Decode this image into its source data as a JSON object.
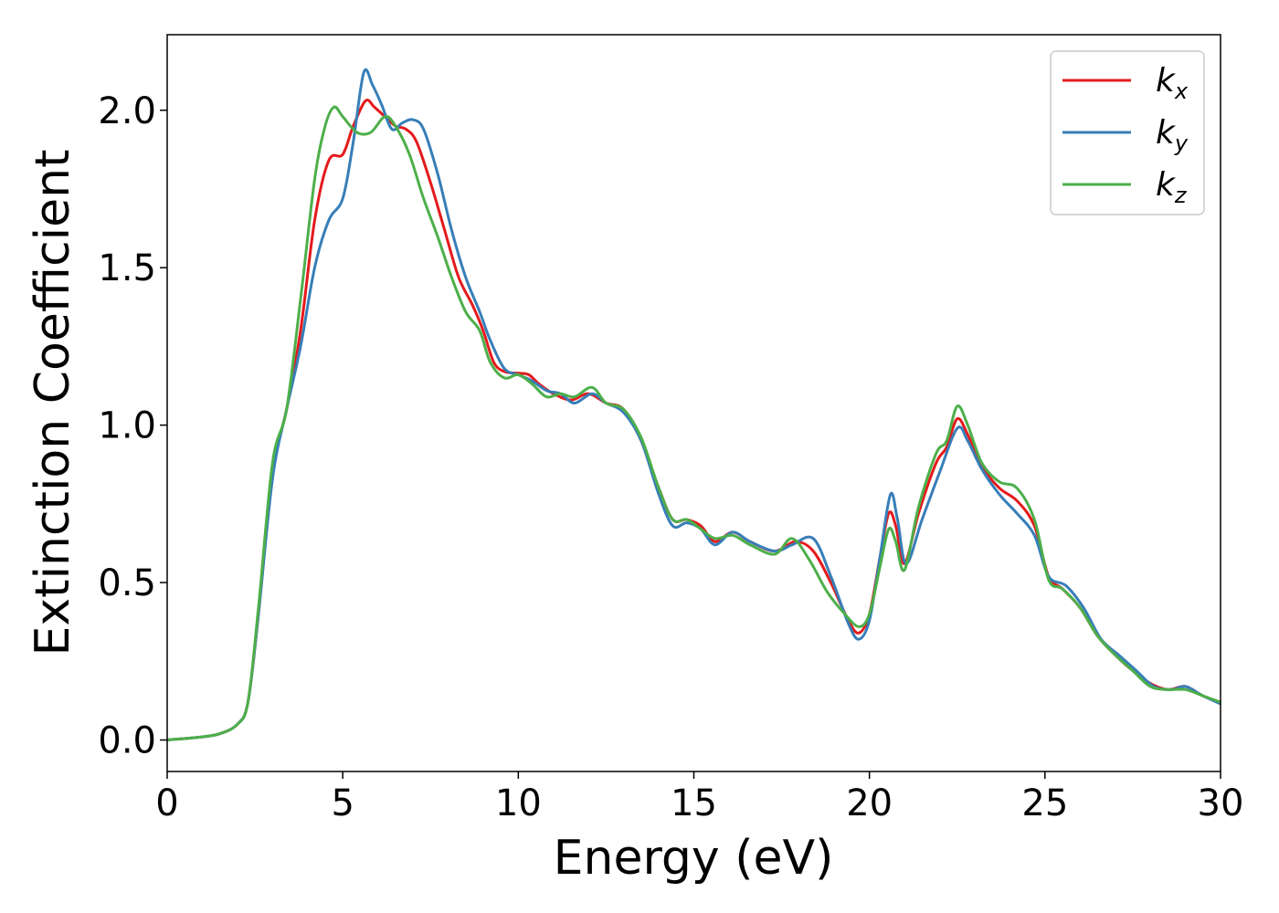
{
  "chart_data": {
    "type": "line",
    "title": "",
    "xlabel": "Energy (eV)",
    "ylabel": "Extinction Coefficient",
    "xlim": [
      0,
      30
    ],
    "ylim": [
      -0.1,
      2.24
    ],
    "xticks": [
      0,
      5,
      10,
      15,
      20,
      25,
      30
    ],
    "yticks": [
      0.0,
      0.5,
      1.0,
      1.5,
      2.0
    ],
    "grid": false,
    "legend_placement": "top-right",
    "series": [
      {
        "base": "k",
        "sub": "x",
        "color": "#e41a1c",
        "points": [
          [
            0,
            0.0
          ],
          [
            1,
            0.01
          ],
          [
            1.5,
            0.02
          ],
          [
            2,
            0.05
          ],
          [
            2.3,
            0.12
          ],
          [
            2.6,
            0.4
          ],
          [
            3.0,
            0.85
          ],
          [
            3.4,
            1.05
          ],
          [
            3.8,
            1.3
          ],
          [
            4.2,
            1.65
          ],
          [
            4.6,
            1.84
          ],
          [
            5.0,
            1.86
          ],
          [
            5.3,
            1.95
          ],
          [
            5.65,
            2.03
          ],
          [
            5.9,
            2.01
          ],
          [
            6.2,
            1.98
          ],
          [
            6.5,
            1.95
          ],
          [
            6.8,
            1.94
          ],
          [
            7.1,
            1.9
          ],
          [
            7.5,
            1.77
          ],
          [
            7.9,
            1.62
          ],
          [
            8.3,
            1.47
          ],
          [
            8.7,
            1.38
          ],
          [
            9.0,
            1.3
          ],
          [
            9.3,
            1.2
          ],
          [
            9.6,
            1.17
          ],
          [
            10.0,
            1.165
          ],
          [
            10.3,
            1.16
          ],
          [
            10.6,
            1.13
          ],
          [
            11.0,
            1.1
          ],
          [
            11.5,
            1.08
          ],
          [
            12.0,
            1.1
          ],
          [
            12.5,
            1.07
          ],
          [
            13.0,
            1.05
          ],
          [
            13.5,
            0.95
          ],
          [
            14.0,
            0.8
          ],
          [
            14.4,
            0.7
          ],
          [
            14.8,
            0.7
          ],
          [
            15.2,
            0.68
          ],
          [
            15.6,
            0.63
          ],
          [
            16.1,
            0.66
          ],
          [
            16.6,
            0.63
          ],
          [
            17.3,
            0.6
          ],
          [
            17.9,
            0.63
          ],
          [
            18.4,
            0.6
          ],
          [
            18.9,
            0.5
          ],
          [
            19.4,
            0.38
          ],
          [
            19.7,
            0.34
          ],
          [
            20.0,
            0.4
          ],
          [
            20.3,
            0.58
          ],
          [
            20.55,
            0.72
          ],
          [
            20.75,
            0.68
          ],
          [
            21.0,
            0.56
          ],
          [
            21.4,
            0.72
          ],
          [
            21.9,
            0.88
          ],
          [
            22.2,
            0.93
          ],
          [
            22.5,
            1.02
          ],
          [
            22.8,
            0.97
          ],
          [
            23.2,
            0.87
          ],
          [
            23.7,
            0.8
          ],
          [
            24.2,
            0.76
          ],
          [
            24.7,
            0.68
          ],
          [
            25.1,
            0.52
          ],
          [
            25.5,
            0.48
          ],
          [
            26.0,
            0.42
          ],
          [
            26.5,
            0.33
          ],
          [
            27.0,
            0.27
          ],
          [
            27.5,
            0.22
          ],
          [
            28.0,
            0.18
          ],
          [
            28.5,
            0.16
          ],
          [
            29.0,
            0.17
          ],
          [
            29.5,
            0.14
          ],
          [
            30.0,
            0.12
          ]
        ]
      },
      {
        "base": "k",
        "sub": "y",
        "color": "#377eb8",
        "points": [
          [
            0,
            0.0
          ],
          [
            1,
            0.01
          ],
          [
            1.5,
            0.02
          ],
          [
            2,
            0.05
          ],
          [
            2.3,
            0.12
          ],
          [
            2.6,
            0.4
          ],
          [
            3.0,
            0.83
          ],
          [
            3.4,
            1.05
          ],
          [
            3.8,
            1.25
          ],
          [
            4.2,
            1.5
          ],
          [
            4.6,
            1.65
          ],
          [
            5.0,
            1.72
          ],
          [
            5.3,
            1.9
          ],
          [
            5.6,
            2.12
          ],
          [
            5.85,
            2.08
          ],
          [
            6.1,
            2.02
          ],
          [
            6.4,
            1.94
          ],
          [
            6.7,
            1.96
          ],
          [
            7.0,
            1.97
          ],
          [
            7.3,
            1.94
          ],
          [
            7.7,
            1.8
          ],
          [
            8.1,
            1.62
          ],
          [
            8.5,
            1.47
          ],
          [
            8.9,
            1.36
          ],
          [
            9.2,
            1.27
          ],
          [
            9.6,
            1.18
          ],
          [
            10.0,
            1.16
          ],
          [
            10.4,
            1.14
          ],
          [
            10.8,
            1.11
          ],
          [
            11.2,
            1.1
          ],
          [
            11.6,
            1.07
          ],
          [
            12.1,
            1.1
          ],
          [
            12.5,
            1.07
          ],
          [
            13.0,
            1.04
          ],
          [
            13.5,
            0.95
          ],
          [
            14.0,
            0.78
          ],
          [
            14.4,
            0.68
          ],
          [
            14.8,
            0.69
          ],
          [
            15.2,
            0.67
          ],
          [
            15.6,
            0.62
          ],
          [
            16.1,
            0.66
          ],
          [
            16.6,
            0.63
          ],
          [
            17.3,
            0.6
          ],
          [
            17.8,
            0.62
          ],
          [
            18.4,
            0.64
          ],
          [
            18.9,
            0.52
          ],
          [
            19.4,
            0.37
          ],
          [
            19.7,
            0.32
          ],
          [
            20.0,
            0.38
          ],
          [
            20.3,
            0.58
          ],
          [
            20.6,
            0.78
          ],
          [
            20.8,
            0.7
          ],
          [
            21.05,
            0.56
          ],
          [
            21.5,
            0.7
          ],
          [
            22.0,
            0.85
          ],
          [
            22.5,
            0.99
          ],
          [
            22.8,
            0.95
          ],
          [
            23.2,
            0.86
          ],
          [
            23.7,
            0.78
          ],
          [
            24.2,
            0.72
          ],
          [
            24.7,
            0.65
          ],
          [
            25.1,
            0.52
          ],
          [
            25.6,
            0.49
          ],
          [
            26.1,
            0.42
          ],
          [
            26.6,
            0.32
          ],
          [
            27.1,
            0.27
          ],
          [
            27.6,
            0.22
          ],
          [
            28.1,
            0.17
          ],
          [
            28.6,
            0.16
          ],
          [
            29.0,
            0.17
          ],
          [
            29.5,
            0.14
          ],
          [
            30.0,
            0.115
          ]
        ]
      },
      {
        "base": "k",
        "sub": "z",
        "color": "#4daf4a",
        "points": [
          [
            0,
            0.0
          ],
          [
            1,
            0.01
          ],
          [
            1.5,
            0.02
          ],
          [
            2,
            0.05
          ],
          [
            2.3,
            0.12
          ],
          [
            2.6,
            0.42
          ],
          [
            3.0,
            0.88
          ],
          [
            3.4,
            1.05
          ],
          [
            3.8,
            1.4
          ],
          [
            4.2,
            1.78
          ],
          [
            4.5,
            1.95
          ],
          [
            4.75,
            2.01
          ],
          [
            5.0,
            1.98
          ],
          [
            5.4,
            1.93
          ],
          [
            5.8,
            1.93
          ],
          [
            6.2,
            1.98
          ],
          [
            6.5,
            1.95
          ],
          [
            6.9,
            1.86
          ],
          [
            7.3,
            1.72
          ],
          [
            7.7,
            1.6
          ],
          [
            8.1,
            1.47
          ],
          [
            8.5,
            1.36
          ],
          [
            8.9,
            1.3
          ],
          [
            9.2,
            1.2
          ],
          [
            9.6,
            1.15
          ],
          [
            10.0,
            1.16
          ],
          [
            10.4,
            1.13
          ],
          [
            10.8,
            1.09
          ],
          [
            11.2,
            1.1
          ],
          [
            11.6,
            1.09
          ],
          [
            12.1,
            1.12
          ],
          [
            12.5,
            1.07
          ],
          [
            13.0,
            1.05
          ],
          [
            13.5,
            0.96
          ],
          [
            14.0,
            0.8
          ],
          [
            14.4,
            0.7
          ],
          [
            14.8,
            0.7
          ],
          [
            15.2,
            0.67
          ],
          [
            15.6,
            0.64
          ],
          [
            16.1,
            0.65
          ],
          [
            16.6,
            0.62
          ],
          [
            17.3,
            0.59
          ],
          [
            17.8,
            0.64
          ],
          [
            18.3,
            0.57
          ],
          [
            18.8,
            0.47
          ],
          [
            19.3,
            0.4
          ],
          [
            19.7,
            0.36
          ],
          [
            20.0,
            0.4
          ],
          [
            20.3,
            0.55
          ],
          [
            20.55,
            0.67
          ],
          [
            20.75,
            0.63
          ],
          [
            21.0,
            0.54
          ],
          [
            21.4,
            0.74
          ],
          [
            21.9,
            0.91
          ],
          [
            22.2,
            0.95
          ],
          [
            22.5,
            1.06
          ],
          [
            22.8,
            1.0
          ],
          [
            23.2,
            0.88
          ],
          [
            23.7,
            0.82
          ],
          [
            24.2,
            0.8
          ],
          [
            24.7,
            0.7
          ],
          [
            25.1,
            0.51
          ],
          [
            25.5,
            0.48
          ],
          [
            26.0,
            0.42
          ],
          [
            26.5,
            0.33
          ],
          [
            27.0,
            0.27
          ],
          [
            27.5,
            0.22
          ],
          [
            28.0,
            0.17
          ],
          [
            28.5,
            0.16
          ],
          [
            29.0,
            0.16
          ],
          [
            29.5,
            0.14
          ],
          [
            30.0,
            0.12
          ]
        ]
      }
    ]
  }
}
